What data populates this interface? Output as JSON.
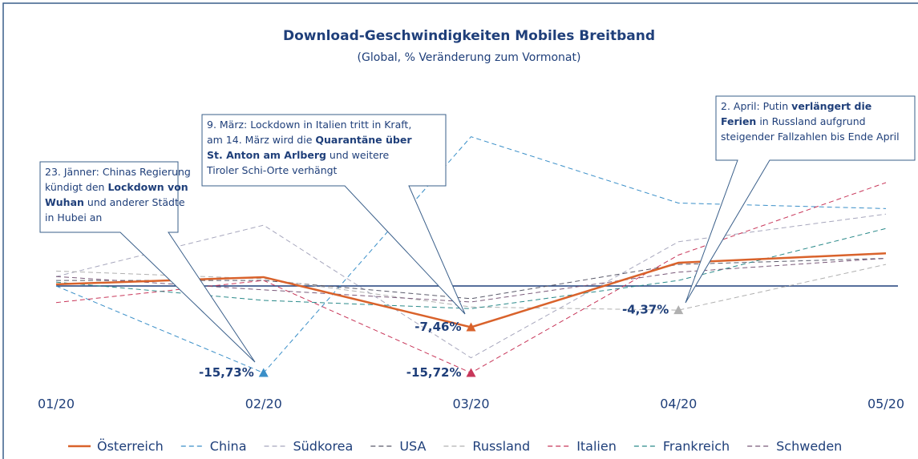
{
  "chart_data": {
    "type": "line",
    "title": "Download-Geschwindigkeiten Mobiles Breitband",
    "subtitle": "(Global, % Veränderung zum Vormonat)",
    "categories": [
      "01/20",
      "02/20",
      "03/20",
      "04/20",
      "05/20"
    ],
    "ylim": [
      -20,
      30
    ],
    "series": [
      {
        "name": "Österreich",
        "color": "#d9622b",
        "solid": true,
        "values": [
          0.3,
          1.6,
          -7.46,
          4.2,
          5.9
        ],
        "value_labels": [
          null,
          null,
          "-7,46%",
          null,
          null
        ]
      },
      {
        "name": "China",
        "color": "#3a8fc8",
        "values": [
          0,
          -15.73,
          27,
          15,
          14
        ],
        "value_labels": [
          null,
          "-15,73%",
          null,
          null,
          null
        ]
      },
      {
        "name": "Südkorea",
        "color": "#a7a7bd",
        "values": [
          1.7,
          11,
          -13,
          8,
          13
        ]
      },
      {
        "name": "USA",
        "color": "#5a5a6a",
        "values": [
          1,
          1,
          -2.3,
          3.9,
          5
        ]
      },
      {
        "name": "Russland",
        "color": "#b0b0b0",
        "values": [
          2.7,
          1.3,
          -3.8,
          -4.37,
          3.9
        ],
        "value_labels": [
          null,
          null,
          null,
          "-4,37%",
          null
        ]
      },
      {
        "name": "Italien",
        "color": "#c8375a",
        "values": [
          -3,
          1,
          -15.72,
          5.6,
          18.7
        ],
        "value_labels": [
          null,
          null,
          "-15,72%",
          null,
          null
        ]
      },
      {
        "name": "Frankreich",
        "color": "#2a8a8a",
        "values": [
          0.7,
          -2.6,
          -4.1,
          1,
          10.4
        ]
      },
      {
        "name": "Schweden",
        "color": "#7a5a7a",
        "values": [
          1.7,
          -0.7,
          -2.9,
          2.5,
          5
        ]
      }
    ],
    "annotations": [
      {
        "lines": [
          [
            {
              "text": "23. Jänner: Chinas Regierung"
            }
          ],
          [
            {
              "text": "kündigt den "
            },
            {
              "text": "Lockdown von",
              "bold": true
            }
          ],
          [
            {
              "text": "Wuhan",
              "bold": true
            },
            {
              "text": " und anderer Städte"
            }
          ],
          [
            {
              "text": "in Hubei an"
            }
          ]
        ]
      },
      {
        "lines": [
          [
            {
              "text": "9. März: Lockdown in Italien tritt in Kraft,"
            }
          ],
          [
            {
              "text": "am 14. März wird die "
            },
            {
              "text": "Quarantäne über",
              "bold": true
            }
          ],
          [
            {
              "text": "St. Anton am Arlberg",
              "bold": true
            },
            {
              "text": " und weitere"
            }
          ],
          [
            {
              "text": "Tiroler Schi-Orte verhängt"
            }
          ]
        ]
      },
      {
        "lines": [
          [
            {
              "text": "2. April: Putin "
            },
            {
              "text": "verlängert die",
              "bold": true
            }
          ],
          [
            {
              "text": "Ferien",
              "bold": true
            },
            {
              "text": " in Russland aufgrund"
            }
          ],
          [
            {
              "text": "steigender Fallzahlen bis Ende April"
            }
          ]
        ]
      }
    ]
  }
}
